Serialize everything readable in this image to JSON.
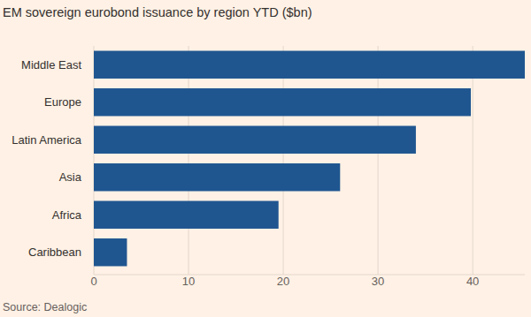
{
  "chart_data": {
    "type": "bar",
    "title": "EM sovereign eurobond issuance by region YTD ($bn)",
    "source": "Source: Dealogic",
    "orientation": "horizontal",
    "categories": [
      "Middle East",
      "Europe",
      "Latin America",
      "Asia",
      "Africa",
      "Caribbean"
    ],
    "values": [
      45.5,
      39.8,
      34,
      26,
      19.5,
      3.5
    ],
    "color": "#1f5690",
    "xlim": [
      0,
      45.5
    ],
    "xticks": [
      0,
      10,
      20,
      30,
      40
    ],
    "grid": true
  }
}
